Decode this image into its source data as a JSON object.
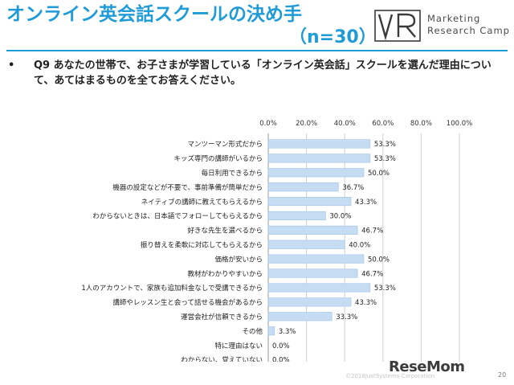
{
  "slide": {
    "title": "オンライン英会話スクールの決め手",
    "subtitle": "（n=30）",
    "logo_line1": "Marketing",
    "logo_line2": "Research Camp",
    "question_bullet": "•",
    "question": "Q9 あなたの世帯で、お子さまが学習している「オンライン英会話」スクールを選んだ理由について、あてはまるものを全てお答えください。",
    "watermark": "ReseMom",
    "copyright": "©2018JustSystems Corporation",
    "page_number": "20"
  },
  "colors": {
    "title": "#1f9bd7",
    "bar": "#c5dcf2",
    "bar_edge": "#9ec4e8",
    "grid": "#cfcfcf"
  },
  "chart_data": {
    "type": "bar",
    "orientation": "horizontal",
    "xlim": [
      0,
      100
    ],
    "ticks": [
      0,
      20,
      40,
      60,
      80,
      100
    ],
    "tick_labels": [
      "0.0%",
      "20.0%",
      "40.0%",
      "60.0%",
      "80.0%",
      "100.0%"
    ],
    "grid": true,
    "categories": [
      "マンツーマン形式だから",
      "キッズ専門の講師がいるから",
      "毎日利用できるから",
      "機器の設定などが不要で、事前準備が簡単だから",
      "ネイティブの講師に教えてもらえるから",
      "わからないときは、日本語でフォローしてもらえるから",
      "好きな先生を選べるから",
      "振り替えを柔軟に対応してもらえるから",
      "価格が安いから",
      "教材がわかりやすいから",
      "1人のアカウントで、家族も追加料金なしで受講できるから",
      "講師やレッスン生と会って話せる機会があるから",
      "運営会社が信頼できるから",
      "その他",
      "特に理由はない",
      "わからない、覚えていない"
    ],
    "values": [
      53.3,
      53.3,
      50.0,
      36.7,
      43.3,
      30.0,
      46.7,
      40.0,
      50.0,
      46.7,
      53.3,
      43.3,
      33.3,
      3.3,
      0.0,
      0.0
    ],
    "value_labels": [
      "53.3%",
      "53.3%",
      "50.0%",
      "36.7%",
      "43.3%",
      "30.0%",
      "46.7%",
      "40.0%",
      "50.0%",
      "46.7%",
      "53.3%",
      "43.3%",
      "33.3%",
      "3.3%",
      "0.0%",
      "0.0%"
    ]
  }
}
